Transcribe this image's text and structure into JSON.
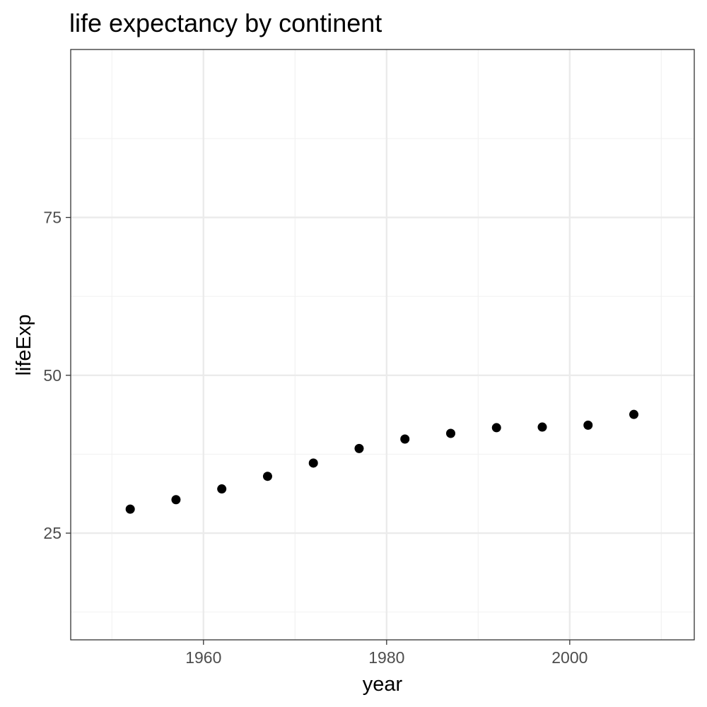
{
  "chart_data": {
    "type": "scatter",
    "title": "life expectancy by continent",
    "xlabel": "year",
    "ylabel": "lifeExp",
    "xlim": [
      1945.5,
      2013.6
    ],
    "ylim": [
      8.1,
      101.6
    ],
    "x_ticks": [
      1960,
      1980,
      2000
    ],
    "y_ticks": [
      25,
      50,
      75
    ],
    "x_minor": [
      1950,
      1970,
      1990,
      2010
    ],
    "y_minor": [
      12.5,
      37.5,
      62.5,
      87.5
    ],
    "grid": true,
    "legend": "none",
    "series": [
      {
        "x": [
          1952,
          1957,
          1962,
          1967,
          1972,
          1977,
          1982,
          1987,
          1992,
          1997,
          2002,
          2007
        ],
        "y": [
          28.8,
          30.3,
          32.0,
          34.0,
          36.1,
          38.4,
          39.9,
          40.8,
          41.7,
          41.8,
          42.1,
          43.8
        ]
      }
    ],
    "colors": {
      "points": "#000000",
      "grid_major": "#ebebeb",
      "grid_minor": "#f2f2f2",
      "panel_border": "#333333",
      "tick_text": "#4d4d4d"
    }
  }
}
